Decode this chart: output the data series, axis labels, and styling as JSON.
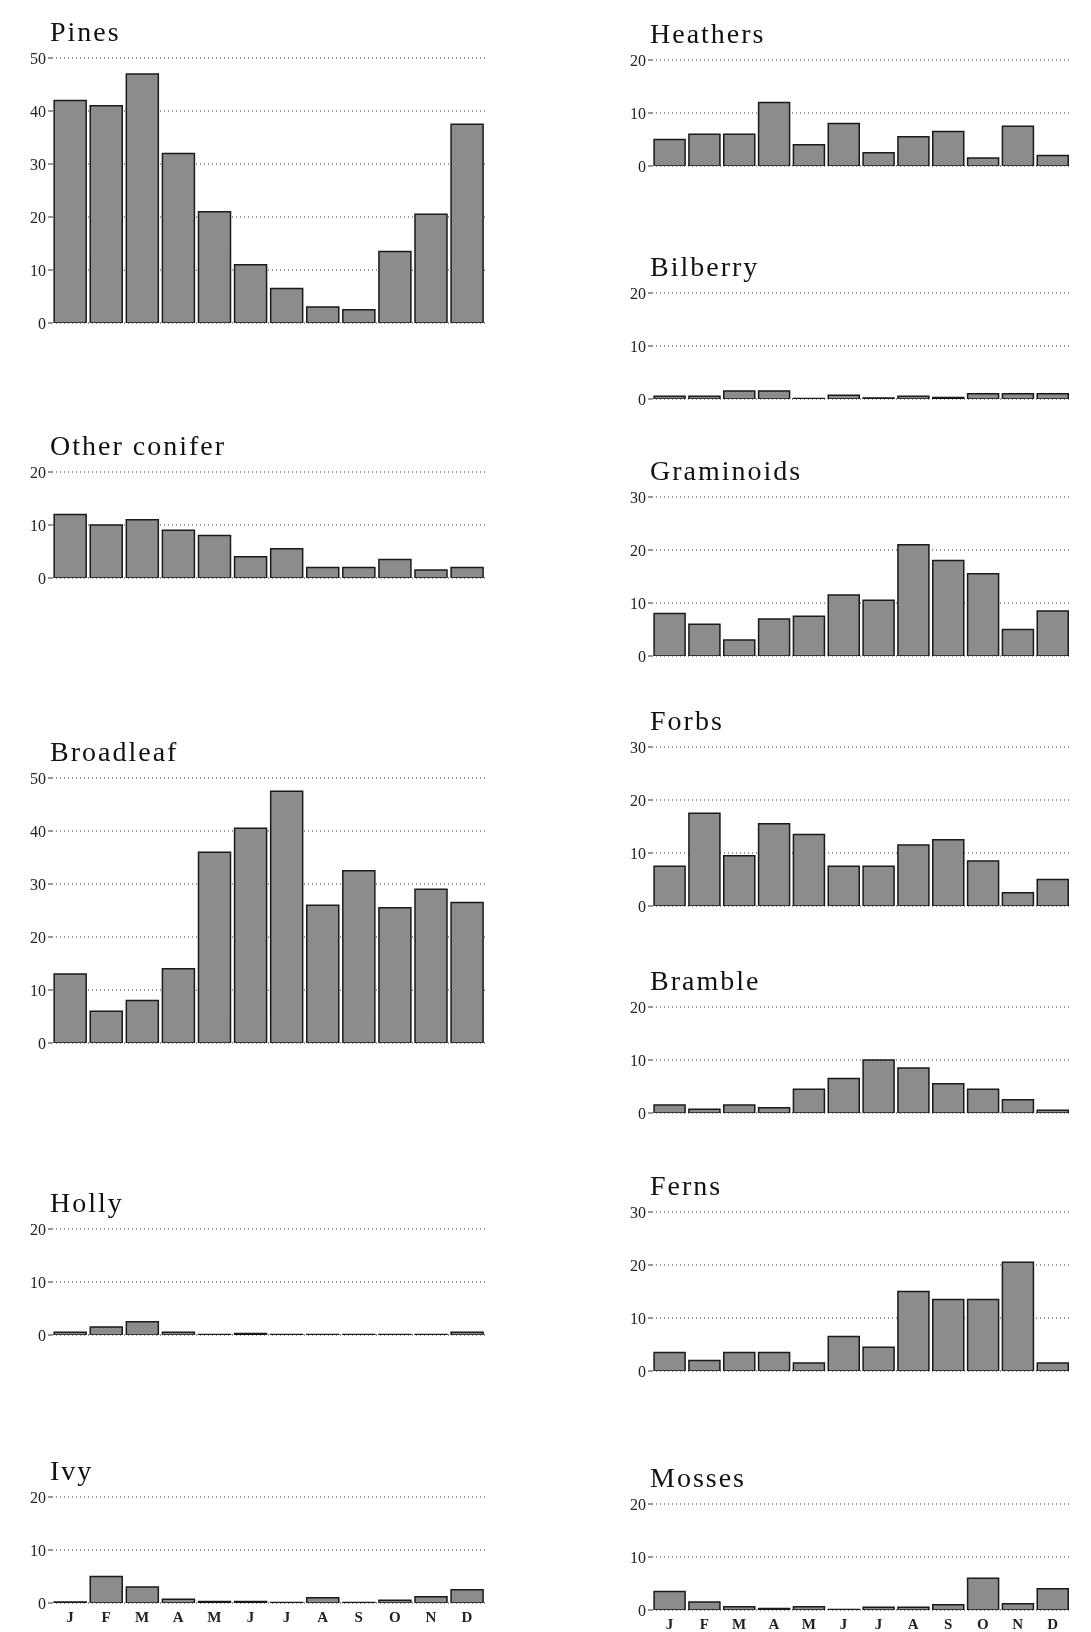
{
  "chart_data": [
    {
      "type": "bar",
      "title": "Pines",
      "categories": [
        null,
        null,
        null,
        null,
        null,
        null,
        null,
        null,
        null,
        null,
        null,
        null
      ],
      "values": [
        42,
        41,
        47,
        32,
        21,
        11,
        6.5,
        3,
        2.5,
        13.5,
        20.5,
        37.5
      ],
      "color": "#8c8c8c",
      "ylim": [
        0,
        50
      ],
      "yticks": [
        0,
        10,
        20,
        30,
        40,
        50
      ],
      "grid": "y",
      "tick_labels": "y"
    },
    {
      "type": "bar",
      "title": "Other conifer",
      "categories": [
        null,
        null,
        null,
        null,
        null,
        null,
        null,
        null,
        null,
        null,
        null,
        null
      ],
      "values": [
        12,
        10,
        11,
        9,
        8,
        4,
        5.5,
        2,
        2,
        3.5,
        1.5,
        2
      ],
      "color": "#8c8c8c",
      "ylim": [
        0,
        20
      ],
      "yticks": [
        0,
        10,
        20
      ],
      "grid": "y",
      "tick_labels": "y"
    },
    {
      "type": "bar",
      "title": "Broadleaf",
      "categories": [
        null,
        null,
        null,
        null,
        null,
        null,
        null,
        null,
        null,
        null,
        null,
        null
      ],
      "values": [
        13,
        6,
        8,
        14,
        36,
        40.5,
        47.5,
        26,
        32.5,
        25.5,
        29,
        26.5
      ],
      "color": "#8c8c8c",
      "ylim": [
        0,
        50
      ],
      "yticks": [
        0,
        10,
        20,
        30,
        40,
        50
      ],
      "grid": "y",
      "tick_labels": "y"
    },
    {
      "type": "bar",
      "title": "Holly",
      "categories": [
        null,
        null,
        null,
        null,
        null,
        null,
        null,
        null,
        null,
        null,
        null,
        null
      ],
      "values": [
        0.5,
        1.5,
        2.5,
        0.5,
        0.1,
        0.3,
        0.1,
        0.1,
        0.1,
        0.1,
        0.1,
        0.5
      ],
      "color": "#8c8c8c",
      "ylim": [
        0,
        20
      ],
      "yticks": [
        0,
        10,
        20
      ],
      "grid": "y",
      "tick_labels": "y"
    },
    {
      "type": "bar",
      "title": "Ivy",
      "categories": [
        "J",
        "F",
        "M",
        "A",
        "M",
        "J",
        "J",
        "A",
        "S",
        "O",
        "N",
        "D"
      ],
      "values": [
        0.2,
        5,
        3,
        0.7,
        0.3,
        0.3,
        0.1,
        1,
        0.1,
        0.5,
        1.2,
        2.5
      ],
      "color": "#8c8c8c",
      "ylim": [
        0,
        20
      ],
      "yticks": [
        0,
        10,
        20
      ],
      "grid": "y"
    },
    {
      "type": "bar",
      "title": "Heathers",
      "categories": [
        null,
        null,
        null,
        null,
        null,
        null,
        null,
        null,
        null,
        null,
        null,
        null
      ],
      "values": [
        5,
        6,
        6,
        12,
        4,
        8,
        2.5,
        5.5,
        6.5,
        1.5,
        7.5,
        2
      ],
      "color": "#8c8c8c",
      "ylim": [
        0,
        20
      ],
      "yticks": [
        0,
        10,
        20
      ],
      "grid": "y",
      "tick_labels": "y"
    },
    {
      "type": "bar",
      "title": "Bilberry",
      "categories": [
        null,
        null,
        null,
        null,
        null,
        null,
        null,
        null,
        null,
        null,
        null,
        null
      ],
      "values": [
        0.5,
        0.5,
        1.5,
        1.5,
        0.1,
        0.7,
        0.2,
        0.5,
        0.3,
        1,
        1,
        1
      ],
      "color": "#8c8c8c",
      "ylim": [
        0,
        20
      ],
      "yticks": [
        0,
        10,
        20
      ],
      "grid": "y",
      "tick_labels": "y"
    },
    {
      "type": "bar",
      "title": "Graminoids",
      "categories": [
        null,
        null,
        null,
        null,
        null,
        null,
        null,
        null,
        null,
        null,
        null,
        null
      ],
      "values": [
        8,
        6,
        3,
        7,
        7.5,
        11.5,
        10.5,
        21,
        18,
        15.5,
        5,
        8.5
      ],
      "color": "#8c8c8c",
      "ylim": [
        0,
        30
      ],
      "yticks": [
        0,
        10,
        20,
        30
      ],
      "grid": "y",
      "tick_labels": "y"
    },
    {
      "type": "bar",
      "title": "Forbs",
      "categories": [
        null,
        null,
        null,
        null,
        null,
        null,
        null,
        null,
        null,
        null,
        null,
        null
      ],
      "values": [
        7.5,
        17.5,
        9.5,
        15.5,
        13.5,
        7.5,
        7.5,
        11.5,
        12.5,
        8.5,
        2.5,
        5
      ],
      "color": "#8c8c8c",
      "ylim": [
        0,
        30
      ],
      "yticks": [
        0,
        10,
        20,
        30
      ],
      "grid": "y",
      "tick_labels": "y"
    },
    {
      "type": "bar",
      "title": "Bramble",
      "categories": [
        null,
        null,
        null,
        null,
        null,
        null,
        null,
        null,
        null,
        null,
        null,
        null
      ],
      "values": [
        1.5,
        0.7,
        1.5,
        1,
        4.5,
        6.5,
        10,
        8.5,
        5.5,
        4.5,
        2.5,
        0.5
      ],
      "color": "#8c8c8c",
      "ylim": [
        0,
        20
      ],
      "yticks": [
        0,
        10,
        20
      ],
      "grid": "y",
      "tick_labels": "y"
    },
    {
      "type": "bar",
      "title": "Ferns",
      "categories": [
        null,
        null,
        null,
        null,
        null,
        null,
        null,
        null,
        null,
        null,
        null,
        null
      ],
      "values": [
        3.5,
        2,
        3.5,
        3.5,
        1.5,
        6.5,
        4.5,
        15,
        13.5,
        13.5,
        20.5,
        1.5
      ],
      "color": "#8c8c8c",
      "ylim": [
        0,
        30
      ],
      "yticks": [
        0,
        10,
        20,
        30
      ],
      "grid": "y",
      "tick_labels": "y"
    },
    {
      "type": "bar",
      "title": "Mosses",
      "categories": [
        "J",
        "F",
        "M",
        "A",
        "M",
        "J",
        "J",
        "A",
        "S",
        "O",
        "N",
        "D"
      ],
      "values": [
        3.5,
        1.5,
        0.6,
        0.3,
        0.6,
        0.1,
        0.5,
        0.5,
        1,
        6,
        1.2,
        4
      ],
      "color": "#8c8c8c",
      "ylim": [
        0,
        20
      ],
      "yticks": [
        0,
        10,
        20
      ],
      "grid": "y"
    }
  ]
}
